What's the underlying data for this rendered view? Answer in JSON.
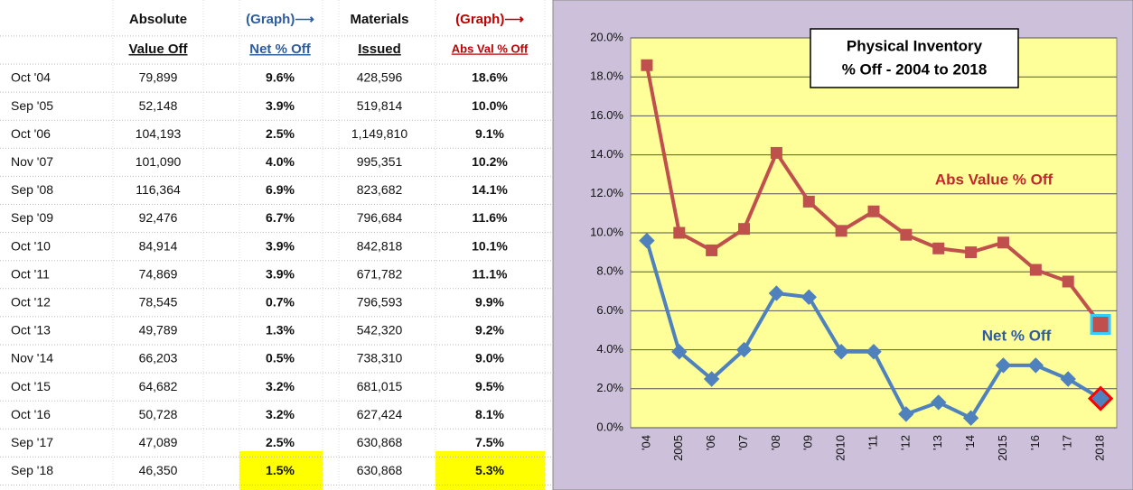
{
  "table": {
    "header": [
      [
        "Absolute",
        "(Graph)⟶",
        "Materials",
        "(Graph)⟶"
      ],
      [
        "Value Off",
        "Net % Off",
        "Issued",
        "Abs Val % Off"
      ]
    ],
    "rows": [
      [
        "Oct '04",
        "79,899",
        "9.6%",
        "428,596",
        "18.6%"
      ],
      [
        "Sep '05",
        "52,148",
        "3.9%",
        "519,814",
        "10.0%"
      ],
      [
        "Oct '06",
        "104,193",
        "2.5%",
        "1,149,810",
        "9.1%"
      ],
      [
        "Nov '07",
        "101,090",
        "4.0%",
        "995,351",
        "10.2%"
      ],
      [
        "Sep '08",
        "116,364",
        "6.9%",
        "823,682",
        "14.1%"
      ],
      [
        "Sep '09",
        "92,476",
        "6.7%",
        "796,684",
        "11.6%"
      ],
      [
        "Oct '10",
        "84,914",
        "3.9%",
        "842,818",
        "10.1%"
      ],
      [
        "Oct '11",
        "74,869",
        "3.9%",
        "671,782",
        "11.1%"
      ],
      [
        "Oct '12",
        "78,545",
        "0.7%",
        "796,593",
        "9.9%"
      ],
      [
        "Oct '13",
        "49,789",
        "1.3%",
        "542,320",
        "9.2%"
      ],
      [
        "Nov '14",
        "66,203",
        "0.5%",
        "738,310",
        "9.0%"
      ],
      [
        "Oct '15",
        "64,682",
        "3.2%",
        "681,015",
        "9.5%"
      ],
      [
        "Oct '16",
        "50,728",
        "3.2%",
        "627,424",
        "8.1%"
      ],
      [
        "Sep '17",
        "47,089",
        "2.5%",
        "630,868",
        "7.5%"
      ],
      [
        "Sep '18",
        "46,350",
        "1.5%",
        "630,868",
        "5.3%"
      ]
    ]
  },
  "chart_data": {
    "type": "line",
    "title": "Physical Inventory",
    "subtitle": "% Off - 2004 to 2018",
    "categories": [
      "'04",
      "2005",
      "'06",
      "'07",
      "'08",
      "'09",
      "2010",
      "'11",
      "'12",
      "'13",
      "'14",
      "2015",
      "'16",
      "'17",
      "2018"
    ],
    "series": [
      {
        "name": "Abs Value % Off",
        "color": "#c0504d",
        "values": [
          18.6,
          10.0,
          9.1,
          10.2,
          14.1,
          11.6,
          10.1,
          11.1,
          9.9,
          9.2,
          9.0,
          9.5,
          8.1,
          7.5,
          5.3
        ]
      },
      {
        "name": "Net % Off",
        "color": "#4f81bd",
        "values": [
          9.6,
          3.9,
          2.5,
          4.0,
          6.9,
          6.7,
          3.9,
          3.9,
          0.7,
          1.3,
          0.5,
          3.2,
          3.2,
          2.5,
          1.5
        ]
      }
    ],
    "ylim": [
      0,
      20
    ],
    "yticks": [
      {
        "value": 0,
        "label": "0.0%"
      },
      {
        "value": 2,
        "label": "2.0%"
      },
      {
        "value": 4,
        "label": "4.0%"
      },
      {
        "value": 6,
        "label": "6.0%"
      },
      {
        "value": 8,
        "label": "8.0%"
      },
      {
        "value": 10,
        "label": "10.0%"
      },
      {
        "value": 12,
        "label": "12.0%"
      },
      {
        "value": 14,
        "label": "14.0%"
      },
      {
        "value": 16,
        "label": "16.0%"
      },
      {
        "value": 18,
        "label": "18.0%"
      },
      {
        "value": 20,
        "label": "20.0%"
      }
    ],
    "grid": true
  }
}
